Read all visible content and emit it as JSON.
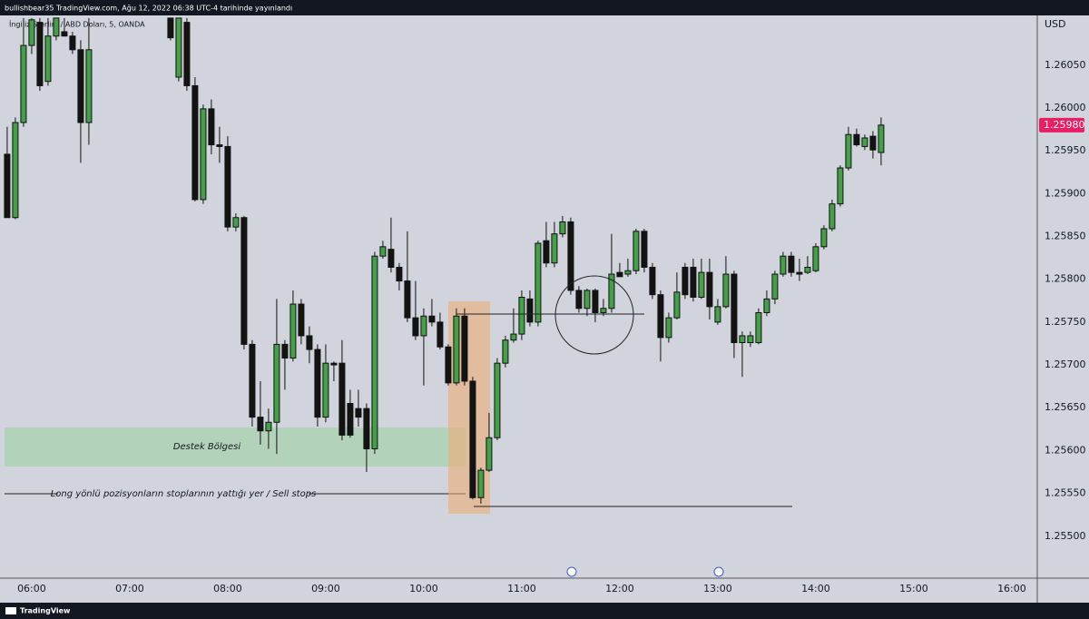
{
  "chart_data": {
    "type": "candlestick",
    "title": "bullishbear35 TradingView.com, Ağu 12, 2022 06:38 UTC-4 tarihinde yayınlandı",
    "subtitle": "İngiliz Sterlini / ABD Doları, 5, OANDA",
    "currency": "USD",
    "brand": "TradingView",
    "annotations": [
      "Destek Bölgesi",
      "Long yönlü pozisyonların stoplarının yattığı yer /  Sell stops"
    ],
    "current_price": {
      "value": 1.2598,
      "label": "1.25980"
    },
    "up_color": "#43a047",
    "down_color": "#131313",
    "xlim": [
      340.6,
      975.6
    ],
    "xticks": [
      {
        "value": 360,
        "label": "06:00"
      },
      {
        "value": 420,
        "label": "07:00"
      },
      {
        "value": 480,
        "label": "08:00"
      },
      {
        "value": 540,
        "label": "09:00"
      },
      {
        "value": 600,
        "label": "10:00"
      },
      {
        "value": 660,
        "label": "11:00"
      },
      {
        "value": 720,
        "label": "12:00"
      },
      {
        "value": 780,
        "label": "13:00"
      },
      {
        "value": 840,
        "label": "14:00"
      },
      {
        "value": 900,
        "label": "15:00"
      },
      {
        "value": 960,
        "label": "16:00"
      }
    ],
    "ylim": [
      1.25451,
      1.26107
    ],
    "yticks": [
      {
        "value": 1.255,
        "label": "1.25500"
      },
      {
        "value": 1.2555,
        "label": "1.25550"
      },
      {
        "value": 1.256,
        "label": "1.25600"
      },
      {
        "value": 1.2565,
        "label": "1.25650"
      },
      {
        "value": 1.257,
        "label": "1.25700"
      },
      {
        "value": 1.2575,
        "label": "1.25750"
      },
      {
        "value": 1.258,
        "label": "1.25800"
      },
      {
        "value": 1.2585,
        "label": "1.25850"
      },
      {
        "value": 1.259,
        "label": "1.25900"
      },
      {
        "value": 1.2595,
        "label": "1.25950"
      },
      {
        "value": 1.26,
        "label": "1.26000"
      },
      {
        "value": 1.2605,
        "label": "1.26050"
      }
    ],
    "grid": false,
    "x": [
      345,
      350,
      355,
      360,
      365,
      370,
      375,
      380,
      385,
      390,
      395,
      445,
      450,
      455,
      460,
      465,
      470,
      475,
      480,
      485,
      490,
      495,
      500,
      505,
      510,
      515,
      520,
      525,
      530,
      535,
      540,
      545,
      550,
      555,
      560,
      565,
      570,
      575,
      580,
      585,
      590,
      595,
      600,
      605,
      610,
      615,
      620,
      625,
      630,
      635,
      640,
      645,
      650,
      655,
      660,
      665,
      670,
      675,
      680,
      685,
      690,
      695,
      700,
      705,
      710,
      715,
      720,
      725,
      730,
      735,
      740,
      745,
      750,
      755,
      760,
      765,
      770,
      775,
      780,
      785,
      790,
      795,
      800,
      805,
      810,
      815,
      820,
      825,
      830,
      835,
      840,
      845,
      850,
      855,
      860,
      865,
      870,
      875,
      880
    ],
    "open": [
      1.25946,
      1.25872,
      1.25983,
      1.26073,
      1.261,
      1.26031,
      1.26084,
      1.26089,
      1.26084,
      1.26068,
      1.25983,
      1.26105,
      1.26036,
      1.261,
      1.26026,
      1.25893,
      1.25999,
      1.25957,
      1.25955,
      1.25861,
      1.25872,
      1.25724,
      1.25639,
      1.25623,
      1.25633,
      1.25724,
      1.25708,
      1.25771,
      1.25734,
      1.25718,
      1.25639,
      1.25702,
      1.25702,
      1.25655,
      1.25649,
      1.25649,
      1.25602,
      1.25827,
      1.25835,
      1.25814,
      1.25798,
      1.25755,
      1.25734,
      1.25757,
      1.2575,
      1.25721,
      1.25679,
      1.25757,
      1.25681,
      1.25545,
      1.25577,
      1.25615,
      1.25702,
      1.25729,
      1.25736,
      1.25777,
      1.2575,
      1.25845,
      1.25819,
      1.25853,
      1.25867,
      1.25787,
      1.25766,
      1.25787,
      1.25761,
      1.25766,
      1.25808,
      1.25806,
      1.2581,
      1.25856,
      1.25814,
      1.25782,
      1.25732,
      1.25755,
      1.25814,
      1.25814,
      1.25779,
      1.25808,
      1.2575,
      1.25768,
      1.25806,
      1.25726,
      1.25726,
      1.25726,
      1.25761,
      1.25777,
      1.25806,
      1.25827,
      1.25808,
      1.25808,
      1.2581,
      1.25838,
      1.25859,
      1.25888,
      1.2593,
      1.25969,
      1.25955,
      1.25967,
      1.25948
    ],
    "high": [
      1.25978,
      1.25989,
      1.26105,
      1.26105,
      1.26105,
      1.26105,
      1.26105,
      1.26105,
      1.26089,
      1.26079,
      1.26105,
      1.26105,
      1.26105,
      1.26105,
      1.26036,
      1.26004,
      1.2601,
      1.25978,
      1.25967,
      1.25877,
      1.25874,
      1.25729,
      1.25681,
      1.25649,
      1.25777,
      1.25729,
      1.25787,
      1.25777,
      1.25745,
      1.25724,
      1.25724,
      1.25704,
      1.25729,
      1.25671,
      1.25671,
      1.25655,
      1.25832,
      1.25845,
      1.25872,
      1.25819,
      1.25856,
      1.25798,
      1.25766,
      1.25777,
      1.25761,
      1.25724,
      1.25766,
      1.25766,
      1.25686,
      1.2558,
      1.25644,
      1.25708,
      1.25734,
      1.25766,
      1.25787,
      1.25787,
      1.25845,
      1.25867,
      1.25867,
      1.25874,
      1.25872,
      1.25792,
      1.25789,
      1.25789,
      1.25777,
      1.25853,
      1.25819,
      1.25824,
      1.25859,
      1.25859,
      1.25819,
      1.25787,
      1.25761,
      1.25808,
      1.25819,
      1.25824,
      1.25824,
      1.25824,
      1.25777,
      1.25827,
      1.2581,
      1.25739,
      1.25739,
      1.25766,
      1.25787,
      1.2581,
      1.25832,
      1.25832,
      1.25824,
      1.25827,
      1.25842,
      1.25863,
      1.25893,
      1.25933,
      1.25978,
      1.25976,
      1.25969,
      1.25973,
      1.25989
    ],
    "low": [
      1.25872,
      1.2587,
      1.25978,
      1.26063,
      1.2602,
      1.26026,
      1.26079,
      1.26084,
      1.26063,
      1.25936,
      1.25957,
      1.26079,
      1.26031,
      1.2602,
      1.25891,
      1.25888,
      1.25946,
      1.25936,
      1.25856,
      1.25856,
      1.25718,
      1.25628,
      1.25607,
      1.25602,
      1.25596,
      1.25671,
      1.25704,
      1.25724,
      1.25702,
      1.25628,
      1.25633,
      1.25681,
      1.25612,
      1.25615,
      1.25628,
      1.25575,
      1.25596,
      1.25824,
      1.25808,
      1.25787,
      1.2575,
      1.25729,
      1.25676,
      1.25745,
      1.25718,
      1.25676,
      1.25676,
      1.25676,
      1.25543,
      1.25538,
      1.25575,
      1.25612,
      1.25697,
      1.25726,
      1.25729,
      1.25745,
      1.25745,
      1.25814,
      1.25814,
      1.25849,
      1.25782,
      1.25761,
      1.25757,
      1.2575,
      1.25757,
      1.25761,
      1.25803,
      1.25803,
      1.25806,
      1.25808,
      1.25777,
      1.25704,
      1.25726,
      1.25753,
      1.25777,
      1.25774,
      1.25777,
      1.25753,
      1.25747,
      1.25766,
      1.25708,
      1.25686,
      1.25721,
      1.25724,
      1.25757,
      1.25771,
      1.25803,
      1.25803,
      1.25798,
      1.25806,
      1.25808,
      1.25835,
      1.25856,
      1.25885,
      1.25927,
      1.25955,
      1.25951,
      1.25941,
      1.25933
    ],
    "close": [
      1.25872,
      1.25983,
      1.26073,
      1.26103,
      1.26026,
      1.26084,
      1.26105,
      1.26084,
      1.26068,
      1.25983,
      1.26068,
      1.26082,
      1.26105,
      1.26026,
      1.25893,
      1.25999,
      1.25957,
      1.25955,
      1.25861,
      1.25872,
      1.25724,
      1.25639,
      1.25623,
      1.25633,
      1.25724,
      1.25708,
      1.25771,
      1.25734,
      1.25718,
      1.25639,
      1.25702,
      1.257,
      1.25618,
      1.25618,
      1.25639,
      1.25602,
      1.25827,
      1.25838,
      1.25814,
      1.25798,
      1.25755,
      1.25734,
      1.25757,
      1.2575,
      1.25721,
      1.25679,
      1.25757,
      1.25681,
      1.25545,
      1.25577,
      1.25615,
      1.25702,
      1.25729,
      1.25736,
      1.25779,
      1.2575,
      1.25842,
      1.25819,
      1.25853,
      1.25867,
      1.25787,
      1.25766,
      1.25787,
      1.25761,
      1.25766,
      1.25806,
      1.25803,
      1.2581,
      1.25856,
      1.25814,
      1.25782,
      1.25732,
      1.25755,
      1.25785,
      1.25782,
      1.25779,
      1.25808,
      1.25768,
      1.25768,
      1.25806,
      1.25726,
      1.25734,
      1.25734,
      1.25761,
      1.25777,
      1.25806,
      1.25827,
      1.25808,
      1.25806,
      1.25814,
      1.25838,
      1.25859,
      1.25888,
      1.2593,
      1.25969,
      1.25957,
      1.25965,
      1.25951,
      1.2598
    ]
  }
}
